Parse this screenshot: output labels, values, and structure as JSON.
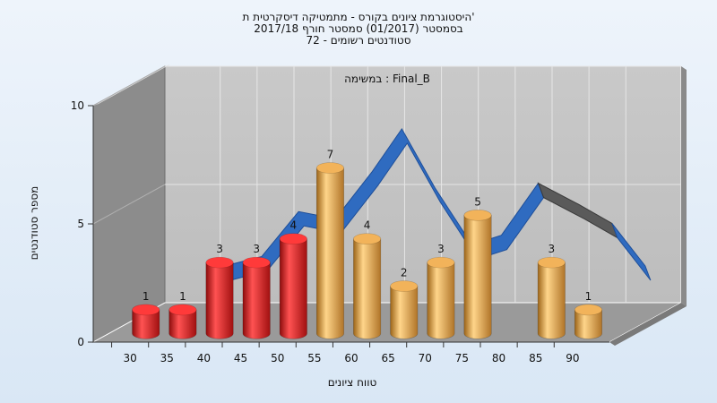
{
  "chart_data": {
    "type": "bar",
    "title_lines": [
      "היסטוגרמת ציונים בקורס - מתמטיקה דיסקרטית ת'",
      "בסמסטר  (01/2017)  סמסטר חורף 2017/18",
      "סטודנטים רשומים - 72"
    ],
    "subtitle": "במשימה : Final_B",
    "xlabel": "טווח ציונים",
    "ylabel": "מספר סטודנטים",
    "ylim": [
      0,
      10
    ],
    "yticks": [
      "0",
      "5",
      "10"
    ],
    "categories": [
      "30",
      "35",
      "40",
      "45",
      "50",
      "55",
      "60",
      "65",
      "70",
      "75",
      "80",
      "85",
      "90"
    ],
    "values": [
      1,
      1,
      3,
      3,
      4,
      7,
      4,
      2,
      3,
      5,
      0,
      3,
      1
    ],
    "data_labels": [
      "1",
      "1",
      "3",
      "3",
      "4",
      "7",
      "4",
      "2",
      "3",
      "5",
      "",
      "3",
      "1"
    ],
    "bar_groups": [
      "fail",
      "fail",
      "fail",
      "fail",
      "fail",
      "pass",
      "pass",
      "pass",
      "pass",
      "pass",
      "pass",
      "pass",
      "pass"
    ],
    "curve": [
      {
        "x": 37.5,
        "y": 2.0
      },
      {
        "x": 42.5,
        "y": 2.4
      },
      {
        "x": 47.5,
        "y": 4.3
      },
      {
        "x": 52.5,
        "y": 4.0
      },
      {
        "x": 57.5,
        "y": 6.0
      },
      {
        "x": 61.5,
        "y": 7.8
      },
      {
        "x": 66.0,
        "y": 5.3
      },
      {
        "x": 71.0,
        "y": 2.9
      },
      {
        "x": 75.0,
        "y": 3.3
      },
      {
        "x": 80.0,
        "y": 5.5
      },
      {
        "x": 85.5,
        "y": 4.6
      },
      {
        "x": 90.0,
        "y": 3.8
      },
      {
        "x": 94.5,
        "y": 2.0
      }
    ],
    "grid": true,
    "colors": {
      "fail": "#dd2222",
      "pass": "#e0a040",
      "curve": "#2f6bc0",
      "curve_back": "#5a5a5a",
      "wall": "#c4c4c4",
      "floor": "#9a9a9a",
      "side": "#8a8a8a"
    }
  }
}
